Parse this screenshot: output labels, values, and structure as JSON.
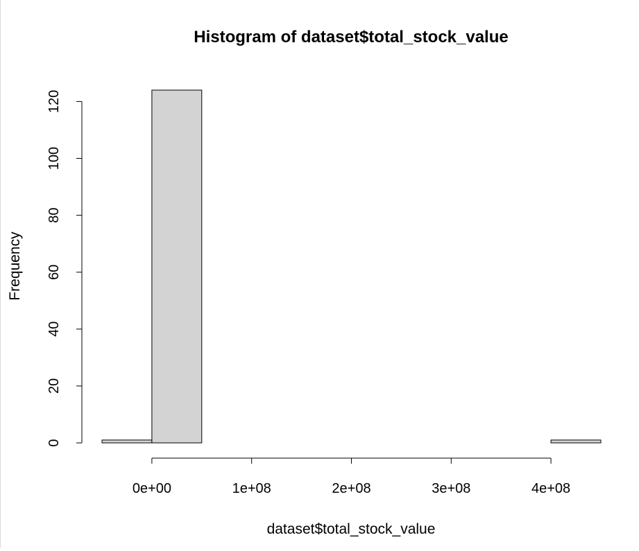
{
  "chart_data": {
    "type": "bar",
    "title": "Histogram of dataset$total_stock_value",
    "xlabel": "dataset$total_stock_value",
    "ylabel": "Frequency",
    "bins": [
      {
        "start": -50000000,
        "end": 0,
        "count": 1
      },
      {
        "start": 0,
        "end": 50000000,
        "count": 124
      },
      {
        "start": 50000000,
        "end": 100000000,
        "count": 0
      },
      {
        "start": 100000000,
        "end": 150000000,
        "count": 0
      },
      {
        "start": 150000000,
        "end": 200000000,
        "count": 0
      },
      {
        "start": 200000000,
        "end": 250000000,
        "count": 0
      },
      {
        "start": 250000000,
        "end": 300000000,
        "count": 0
      },
      {
        "start": 300000000,
        "end": 350000000,
        "count": 0
      },
      {
        "start": 350000000,
        "end": 400000000,
        "count": 0
      },
      {
        "start": 400000000,
        "end": 450000000,
        "count": 1
      }
    ],
    "xlim": [
      -50000000,
      450000000
    ],
    "ylim": [
      0,
      124
    ],
    "x_ticks": [
      {
        "value": 0,
        "label": "0e+00"
      },
      {
        "value": 100000000,
        "label": "1e+08"
      },
      {
        "value": 200000000,
        "label": "2e+08"
      },
      {
        "value": 300000000,
        "label": "3e+08"
      },
      {
        "value": 400000000,
        "label": "4e+08"
      }
    ],
    "y_ticks": [
      {
        "value": 0,
        "label": "0"
      },
      {
        "value": 20,
        "label": "20"
      },
      {
        "value": 40,
        "label": "40"
      },
      {
        "value": 60,
        "label": "60"
      },
      {
        "value": 80,
        "label": "80"
      },
      {
        "value": 100,
        "label": "100"
      },
      {
        "value": 120,
        "label": "120"
      }
    ],
    "grid": false,
    "legend": "none",
    "colors": {
      "bar_fill": "#d3d3d3",
      "bar_stroke": "#000000",
      "axis": "#000000",
      "background": "#ffffff"
    }
  }
}
